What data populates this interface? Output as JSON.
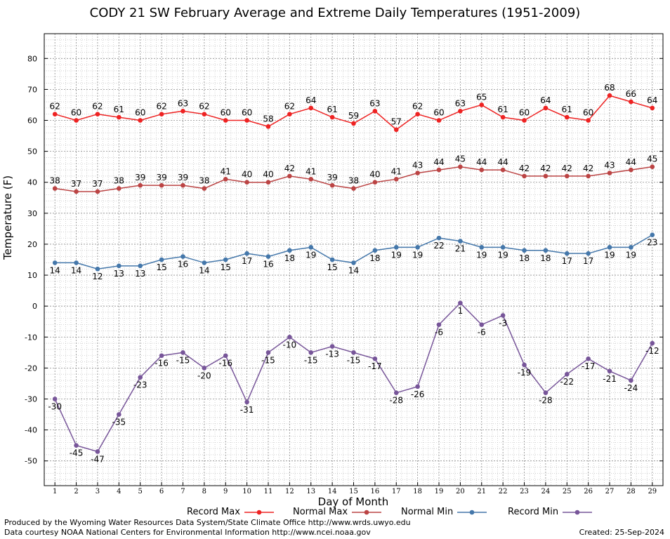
{
  "title": "CODY 21 SW February Average and Extreme Daily Temperatures (1951-2009)",
  "footer": {
    "produced": "Produced by the Wyoming Water Resources Data System/State Climate Office http://www.wrds.uwyo.edu",
    "courtesy": "Data courtesy NOAA National Centers for Environmental Information http://www.ncei.noaa.gov",
    "created": "Created:  25-Sep-2024"
  },
  "chart_data": {
    "type": "line",
    "title": "CODY 21 SW February Average and Extreme Daily Temperatures (1951-2009)",
    "xlabel": "Day of Month",
    "ylabel": "Temperature (F)",
    "x": [
      1,
      2,
      3,
      4,
      5,
      6,
      7,
      8,
      9,
      10,
      11,
      12,
      13,
      14,
      15,
      16,
      17,
      18,
      19,
      20,
      21,
      22,
      23,
      24,
      25,
      26,
      27,
      28,
      29
    ],
    "xlim": [
      0.5,
      29.5
    ],
    "ylim": [
      -58,
      88
    ],
    "yticks": [
      -50,
      -40,
      -30,
      -20,
      -10,
      0,
      10,
      20,
      30,
      40,
      50,
      60,
      70,
      80
    ],
    "grid": true,
    "legend_position": "bottom",
    "series": [
      {
        "name": "Record Max",
        "color": "#ee2222",
        "values": [
          62,
          60,
          62,
          61,
          60,
          62,
          63,
          62,
          60,
          60,
          58,
          62,
          64,
          61,
          59,
          63,
          57,
          62,
          60,
          63,
          65,
          61,
          60,
          64,
          61,
          60,
          68,
          66,
          64
        ]
      },
      {
        "name": "Normal Max",
        "color": "#bb4444",
        "values": [
          38,
          37,
          37,
          38,
          39,
          39,
          39,
          38,
          41,
          40,
          40,
          42,
          41,
          39,
          38,
          40,
          41,
          43,
          44,
          45,
          44,
          44,
          42,
          42,
          42,
          42,
          43,
          44,
          45
        ]
      },
      {
        "name": "Normal Min",
        "color": "#4477aa",
        "values": [
          14,
          14,
          12,
          13,
          13,
          15,
          16,
          14,
          15,
          17,
          16,
          18,
          19,
          15,
          14,
          18,
          19,
          19,
          22,
          21,
          19,
          19,
          18,
          18,
          17,
          17,
          19,
          19,
          23
        ]
      },
      {
        "name": "Record Min",
        "color": "#775599",
        "values": [
          -30,
          -45,
          -47,
          -35,
          -23,
          -16,
          -15,
          -20,
          -16,
          -31,
          -15,
          -10,
          -15,
          -13,
          -15,
          -17,
          -28,
          -26,
          -6,
          1,
          -6,
          -3,
          -19,
          -28,
          -22,
          -17,
          -21,
          -24,
          -12
        ]
      }
    ]
  }
}
